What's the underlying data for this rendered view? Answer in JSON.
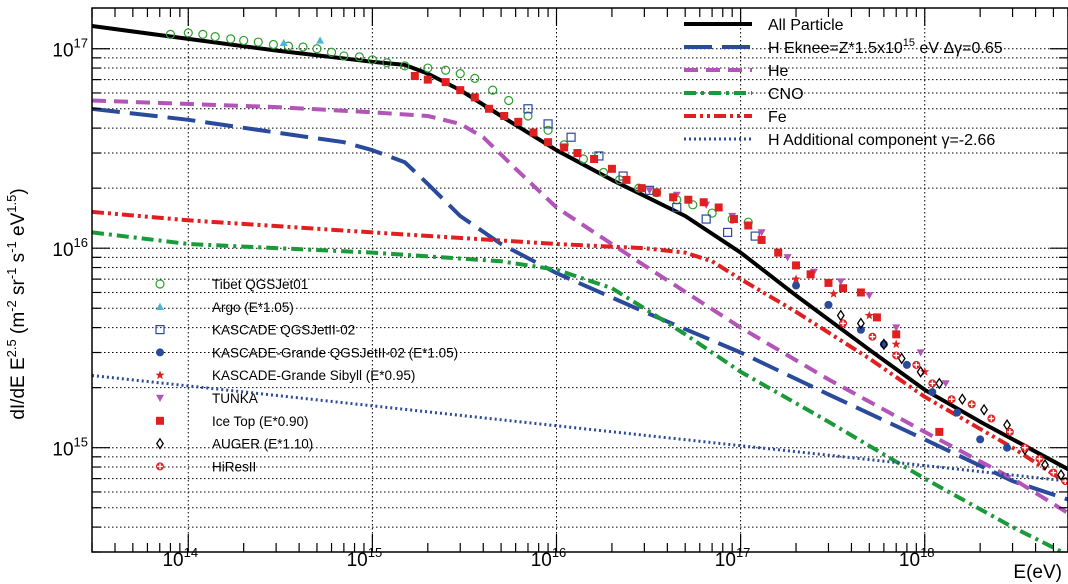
{
  "chart_data": {
    "type": "line",
    "title": "",
    "xlabel": "E(eV)",
    "ylabel": "dI/dE E^2.5 (m^-2 sr^-1 s^-1 eV^1.5)",
    "xscale": "log",
    "yscale": "log",
    "xlim": [
      30000000000000.0,
      6e+18
    ],
    "ylim": [
      300000000000000.0,
      1.6e+17
    ],
    "grid": true,
    "x_tick_labels": [
      {
        "base": "10",
        "exp": "14",
        "value": 100000000000000.0
      },
      {
        "base": "10",
        "exp": "15",
        "value": 1000000000000000.0
      },
      {
        "base": "10",
        "exp": "16",
        "value": 1e+16
      },
      {
        "base": "10",
        "exp": "17",
        "value": 1e+17
      },
      {
        "base": "10",
        "exp": "18",
        "value": 1e+18
      }
    ],
    "y_tick_labels": [
      {
        "base": "10",
        "exp": "15",
        "value": 1000000000000000.0
      },
      {
        "base": "10",
        "exp": "16",
        "value": 1e+16
      },
      {
        "base": "10",
        "exp": "17",
        "value": 1e+17
      }
    ],
    "ylabel_parts": {
      "pre": "dI/dE E",
      "e1": "2.5",
      "m1": " (m",
      "e2": "-2",
      "m2": " sr",
      "e3": "-1",
      "m3": " s",
      "e4": "-1",
      "m4": " eV",
      "e5": "1.5",
      "post": ")"
    },
    "legend_placement": "top-right",
    "lines": [
      {
        "label": "All Particle",
        "color": "#000000",
        "dash": "solid",
        "width": 4,
        "x": [
          30000000000000.0,
          100000000000000.0,
          300000000000000.0,
          1000000000000000.0,
          1500000000000000.0,
          2000000000000000.0,
          3000000000000000.0,
          5000000000000000.0,
          1e+16,
          2e+16,
          5e+16,
          1e+17,
          2e+17,
          5e+17,
          1e+18,
          2e+18,
          6e+18
        ],
        "y": [
          1.3e+17,
          1.12e+17,
          9.8e+16,
          8.6e+16,
          8.3e+16,
          7.5e+16,
          6.2e+16,
          4.6e+16,
          3.1e+16,
          2.2e+16,
          1.45e+16,
          9500000000000000.0,
          5800000000000000.0,
          3100000000000000.0,
          1950000000000000.0,
          1350000000000000.0,
          780000000000000.0
        ]
      },
      {
        "label": "H Eknee=Z*1.5x10",
        "label_exp": "15",
        "label_tail": " eV Δγ=0.65",
        "color": "#2a4a9c",
        "dash": "long-dash",
        "width": 4,
        "x": [
          30000000000000.0,
          100000000000000.0,
          300000000000000.0,
          700000000000000.0,
          1000000000000000.0,
          1500000000000000.0,
          2000000000000000.0,
          3000000000000000.0,
          5000000000000000.0,
          1e+16,
          3e+16,
          1e+17,
          3e+17,
          1e+18,
          3e+18,
          6e+18
        ],
        "y": [
          5e+16,
          4.4e+16,
          3.8e+16,
          3.4e+16,
          3.1e+16,
          2.7e+16,
          2.1e+16,
          1.45e+16,
          1.05e+16,
          7500000000000000.0,
          4800000000000000.0,
          3000000000000000.0,
          1850000000000000.0,
          1100000000000000.0,
          680000000000000.0,
          550000000000000.0
        ]
      },
      {
        "label": "He",
        "color": "#b254b8",
        "dash": "dash",
        "width": 4,
        "x": [
          30000000000000.0,
          300000000000000.0,
          1000000000000000.0,
          2000000000000000.0,
          3000000000000000.0,
          4000000000000000.0,
          6000000000000000.0,
          1e+16,
          3e+16,
          1e+17,
          3e+17,
          1e+18,
          3e+18,
          6e+18
        ],
        "y": [
          5.5e+16,
          5.1e+16,
          4.8e+16,
          4.6e+16,
          4.2e+16,
          3.6e+16,
          2.5e+16,
          1.6e+16,
          8200000000000000.0,
          4000000000000000.0,
          2200000000000000.0,
          1200000000000000.0,
          700000000000000.0,
          470000000000000.0
        ]
      },
      {
        "label": "CNO",
        "color": "#1a9a38",
        "dash": "dash-dot",
        "width": 4,
        "x": [
          30000000000000.0,
          100000000000000.0,
          1000000000000000.0,
          5000000000000000.0,
          1e+16,
          2e+16,
          3e+16,
          5e+16,
          1e+17,
          3e+17,
          1e+18,
          3e+18,
          6e+18
        ],
        "y": [
          1.2e+16,
          1.05e+16,
          9500000000000000.0,
          8600000000000000.0,
          7800000000000000.0,
          6300000000000000.0,
          5000000000000000.0,
          3700000000000000.0,
          2400000000000000.0,
          1350000000000000.0,
          700000000000000.0,
          400000000000000.0,
          290000000000000.0
        ]
      },
      {
        "label": "Fe",
        "color": "#e02020",
        "dash": "dash-dot-dot",
        "width": 4,
        "x": [
          30000000000000.0,
          100000000000000.0,
          1000000000000000.0,
          1e+16,
          3e+16,
          5e+16,
          7e+16,
          1e+17,
          2e+17,
          5e+17,
          1e+18,
          3e+18,
          6e+18
        ],
        "y": [
          1.52e+16,
          1.38e+16,
          1.2e+16,
          1.05e+16,
          1e+16,
          9500000000000000.0,
          8600000000000000.0,
          7000000000000000.0,
          4800000000000000.0,
          2800000000000000.0,
          1800000000000000.0,
          1000000000000000.0,
          660000000000000.0
        ]
      },
      {
        "label": "H Additional component ",
        "label_gamma": "γ=-2.66",
        "color": "#2a4a9c",
        "dash": "dotted",
        "width": 3,
        "x": [
          30000000000000.0,
          6e+18
        ],
        "y": [
          2300000000000000.0,
          680000000000000.0
        ]
      }
    ],
    "datasets": [
      {
        "label": "Tibet QGSJet01",
        "marker": "circle-open",
        "color": "#2ca02c",
        "x": [
          80000000000000.0,
          100000000000000.0,
          120000000000000.0,
          140000000000000.0,
          170000000000000.0,
          200000000000000.0,
          240000000000000.0,
          290000000000000.0,
          350000000000000.0,
          420000000000000.0,
          500000000000000.0,
          600000000000000.0,
          700000000000000.0,
          850000000000000.0,
          1000000000000000.0,
          1200000000000000.0,
          1500000000000000.0,
          2000000000000000.0,
          2500000000000000.0,
          3000000000000000.0,
          3600000000000000.0,
          4500000000000000.0,
          5500000000000000.0,
          7000000000000000.0,
          9000000000000000.0,
          1.1e+16,
          1.4e+16,
          1.8e+16,
          2.2e+16,
          2.8e+16,
          3.5e+16,
          4.5e+16,
          5.5e+16,
          7e+16,
          9e+16,
          1.1e+17
        ],
        "y": [
          1.18e+17,
          1.2e+17,
          1.18e+17,
          1.15e+17,
          1.12e+17,
          1.1e+17,
          1.08e+17,
          1.05e+17,
          1.03e+17,
          1.02e+17,
          1e+17,
          9.6e+16,
          9.2e+16,
          9.1e+16,
          8.8e+16,
          8.5e+16,
          8.2e+16,
          8e+16,
          7.8e+16,
          7.5e+16,
          7.1e+16,
          6.2e+16,
          5.5e+16,
          4.6e+16,
          3.9e+16,
          3.3e+16,
          2.8e+16,
          2.4e+16,
          2.2e+16,
          2e+16,
          1.9e+16,
          1.75e+16,
          1.65e+16,
          1.5e+16,
          1.4e+16,
          1.35e+16
        ]
      },
      {
        "label": "Argo (E*1.05)",
        "marker": "triangle-up",
        "color": "#4fb4d8",
        "x": [
          330000000000000.0,
          520000000000000.0
        ],
        "y": [
          1.07e+17,
          1.1e+17
        ]
      },
      {
        "label": "KASCADE QGSJetII-02",
        "marker": "square-open",
        "color": "#2a4a9c",
        "x": [
          7000000000000000.0,
          9000000000000000.0,
          1.2e+16,
          1.7e+16,
          2.3e+16,
          3.2e+16,
          4.5e+16,
          6.5e+16,
          8.5e+16,
          1.2e+17
        ],
        "y": [
          5e+16,
          4.2e+16,
          3.6e+16,
          2.9e+16,
          2.3e+16,
          1.95e+16,
          1.6e+16,
          1.4e+16,
          1.2e+16,
          1.15e+16
        ]
      },
      {
        "label": "KASCADE-Grande QGSJetII-02 (E*1.05)",
        "marker": "circle-filled",
        "color": "#2a4a9c",
        "x": [
          2e+17,
          3e+17,
          4.5e+17,
          6e+17,
          8e+17,
          1.1e+18,
          1.5e+18,
          2e+18,
          2.8e+18
        ],
        "y": [
          6500000000000000.0,
          5200000000000000.0,
          3900000000000000.0,
          3300000000000000.0,
          2600000000000000.0,
          1900000000000000.0,
          1500000000000000.0,
          1100000000000000.0,
          1000000000000000.0
        ]
      },
      {
        "label": "KASCADE-Grande Sibyll (E*0.95)",
        "marker": "star",
        "color": "#e02020",
        "x": [
          2e+17,
          3.2e+17,
          5e+17,
          7e+17,
          1e+18
        ],
        "y": [
          7000000000000000.0,
          5900000000000000.0,
          4600000000000000.0,
          3300000000000000.0,
          2400000000000000.0
        ]
      },
      {
        "label": "TUNKA",
        "marker": "triangle-down",
        "color": "#b254b8",
        "x": [
          3.2e+16,
          4.5e+16,
          6.5e+16,
          9e+16,
          1.3e+17,
          1.8e+17,
          2.5e+17,
          3.5e+17,
          5e+17,
          7e+17,
          9.5e+17,
          1.3e+18
        ],
        "y": [
          1.95e+16,
          1.85e+16,
          1.65e+16,
          1.45e+16,
          1.2e+16,
          9000000000000000.0,
          7600000000000000.0,
          6800000000000000.0,
          5800000000000000.0,
          4000000000000000.0,
          3000000000000000.0,
          2100000000000000.0
        ]
      },
      {
        "label": "Ice Top (E*0.90)",
        "marker": "square-filled",
        "color": "#e02020",
        "x": [
          1700000000000000.0,
          2000000000000000.0,
          2500000000000000.0,
          3000000000000000.0,
          3600000000000000.0,
          4300000000000000.0,
          5200000000000000.0,
          6200000000000000.0,
          7500000000000000.0,
          9000000000000000.0,
          1.1e+16,
          1.3e+16,
          1.6e+16,
          2e+16,
          2.4e+16,
          2.9e+16,
          3.5e+16,
          4.3e+16,
          5.2e+16,
          6.3e+16,
          7.6e+16,
          9.2e+16,
          1.1e+17,
          1.3e+17,
          1.6e+17,
          2e+17,
          2.4e+17,
          3e+17,
          3.6e+17,
          4.5e+17,
          5.5e+17,
          7e+17,
          1.2e+18
        ],
        "y": [
          7.3e+16,
          7e+16,
          6.8e+16,
          6.2e+16,
          5.7e+16,
          5e+16,
          4.6e+16,
          4.3e+16,
          3.8e+16,
          3.4e+16,
          3.2e+16,
          3e+16,
          2.8e+16,
          2.5e+16,
          2.2e+16,
          2e+16,
          1.9e+16,
          1.8e+16,
          1.75e+16,
          1.7e+16,
          1.6e+16,
          1.4e+16,
          1.3e+16,
          1.1e+16,
          9500000000000000.0,
          8200000000000000.0,
          7400000000000000.0,
          6700000000000000.0,
          6300000000000000.0,
          6000000000000000.0,
          4500000000000000.0,
          3700000000000000.0,
          1200000000000000.0
        ]
      },
      {
        "label": "AUGER (E*1.10)",
        "marker": "diamond-open",
        "color": "#000000",
        "x": [
          3.5e+17,
          4.5e+17,
          6e+17,
          7.5e+17,
          9.5e+17,
          1.2e+18,
          1.6e+18,
          2.1e+18,
          2.8e+18,
          3.5e+18,
          4.5e+18,
          5.5e+18
        ],
        "y": [
          4600000000000000.0,
          4200000000000000.0,
          3300000000000000.0,
          2800000000000000.0,
          2400000000000000.0,
          2100000000000000.0,
          1750000000000000.0,
          1550000000000000.0,
          1300000000000000.0,
          980000000000000.0,
          820000000000000.0,
          730000000000000.0
        ]
      },
      {
        "label": "HiResII",
        "marker": "cross-circle",
        "color": "#e02020",
        "x": [
          3.6e+17,
          5.2e+17,
          7e+17,
          9e+17,
          1.1e+18,
          1.4e+18,
          1.8e+18,
          2.3e+18,
          2.9e+18,
          3.5e+18,
          4.2e+18,
          5e+18,
          5.8e+18
        ],
        "y": [
          4200000000000000.0,
          3600000000000000.0,
          2900000000000000.0,
          2600000000000000.0,
          2100000000000000.0,
          1750000000000000.0,
          1650000000000000.0,
          1400000000000000.0,
          1200000000000000.0,
          1000000000000000.0,
          880000000000000.0,
          750000000000000.0,
          680000000000000.0
        ]
      }
    ]
  }
}
